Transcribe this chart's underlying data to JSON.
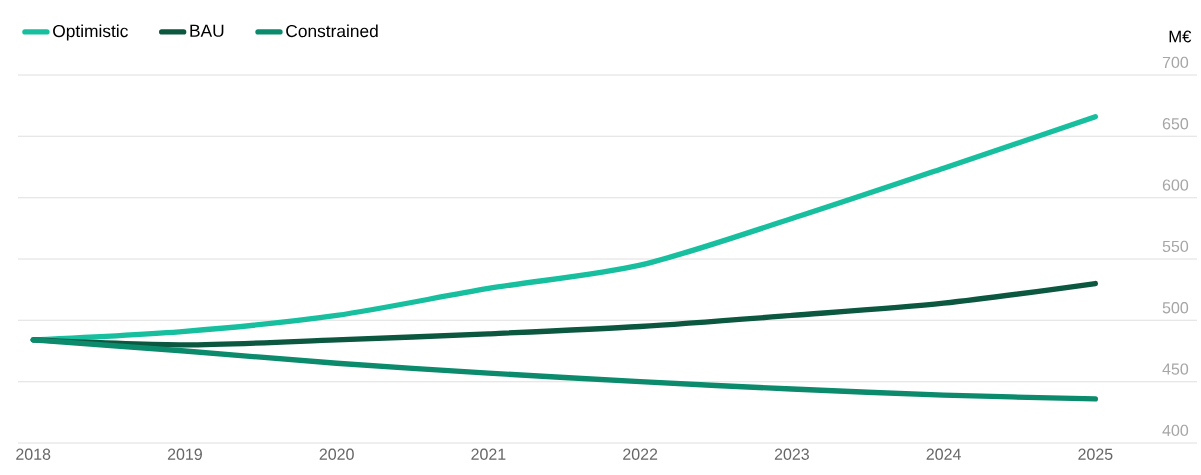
{
  "chart_data": {
    "type": "line",
    "ylabel": "M€",
    "x": [
      2018,
      2019,
      2020,
      2021,
      2022,
      2023,
      2024,
      2025
    ],
    "xlim": [
      2017.9,
      2025.67
    ],
    "xticks": [
      2018,
      2019,
      2020,
      2021,
      2022,
      2023,
      2024,
      2025
    ],
    "ylim": [
      400,
      700
    ],
    "yticks": [
      400,
      450,
      500,
      550,
      600,
      650,
      700
    ],
    "grid": "y",
    "legend": "top left",
    "marker": "none",
    "line_style": "solid",
    "series": [
      {
        "name": "Optimistic",
        "color": "#17bf9f",
        "values": [
          484,
          491,
          504,
          526,
          545,
          583,
          624,
          666
        ]
      },
      {
        "name": "BAU",
        "color": "#0b5740",
        "values": [
          484,
          480,
          484,
          489,
          495,
          504,
          514,
          530
        ]
      },
      {
        "name": "Constrained",
        "color": "#0b8a6c",
        "values": [
          484,
          475,
          465,
          457,
          450,
          444,
          439,
          436
        ]
      }
    ]
  }
}
